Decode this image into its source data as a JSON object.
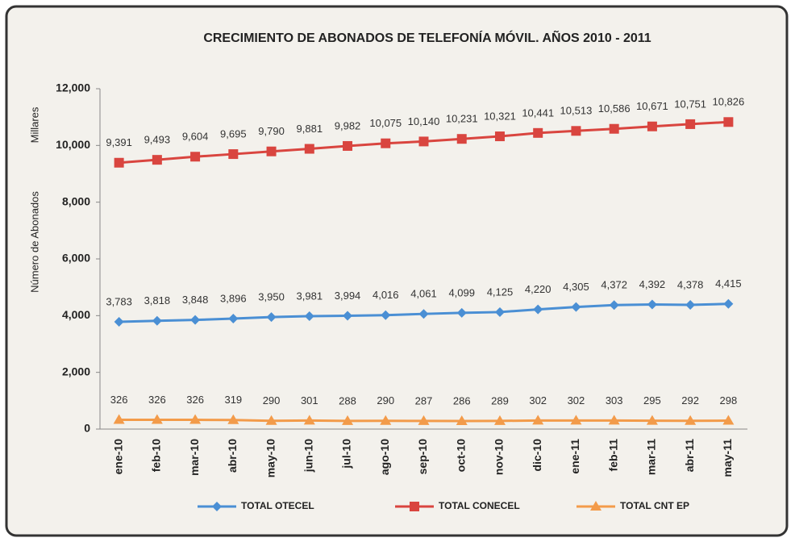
{
  "chart_data": {
    "type": "line",
    "title": "CRECIMIENTO DE ABONADOS DE TELEFONÍA MÓVIL.  AÑOS 2010 - 2011",
    "y_label": "Número de Abonados",
    "y_unit": "Millares",
    "categories": [
      "ene-10",
      "feb-10",
      "mar-10",
      "abr-10",
      "may-10",
      "jun-10",
      "jul-10",
      "ago-10",
      "sep-10",
      "oct-10",
      "nov-10",
      "dic-10",
      "ene-11",
      "feb-11",
      "mar-11",
      "abr-11",
      "may-11"
    ],
    "series": [
      {
        "name": "TOTAL OTECEL",
        "color": "#4a8fd4",
        "marker": "diamond",
        "values": [
          3783,
          3818,
          3848,
          3896,
          3950,
          3981,
          3994,
          4016,
          4061,
          4099,
          4125,
          4220,
          4305,
          4372,
          4392,
          4378,
          4415
        ],
        "value_labels": [
          "3,783",
          "3,818",
          "3,848",
          "3,896",
          "3,950",
          "3,981",
          "3,994",
          "4,016",
          "4,061",
          "4,099",
          "4,125",
          "4,220",
          "4,305",
          "4,372",
          "4,392",
          "4,378",
          "4,415"
        ]
      },
      {
        "name": "TOTAL CONECEL",
        "color": "#d9453f",
        "marker": "square",
        "values": [
          9391,
          9493,
          9604,
          9695,
          9790,
          9881,
          9982,
          10075,
          10140,
          10231,
          10321,
          10441,
          10513,
          10586,
          10671,
          10751,
          10826
        ],
        "value_labels": [
          "9,391",
          "9,493",
          "9,604",
          "9,695",
          "9,790",
          "9,881",
          "9,982",
          "10,075",
          "10,140",
          "10,231",
          "10,321",
          "10,441",
          "10,513",
          "10,586",
          "10,671",
          "10,751",
          "10,826"
        ]
      },
      {
        "name": "TOTAL CNT EP",
        "color": "#f39b4a",
        "marker": "triangle",
        "values": [
          326,
          326,
          326,
          319,
          290,
          301,
          288,
          290,
          287,
          286,
          289,
          302,
          302,
          303,
          295,
          292,
          298
        ]
      }
    ],
    "ylim": [
      0,
      12000
    ],
    "yticks": [
      0,
      {
        "value": 2000,
        "label": "2,000"
      },
      {
        "value": 4000,
        "label": "4,000"
      },
      {
        "value": 6000,
        "label": "6,000"
      },
      {
        "value": 8000,
        "label": "8,000"
      },
      {
        "value": 10000,
        "label": "10,000"
      },
      {
        "value": 12000,
        "label": "12,000"
      }
    ],
    "grid": false,
    "legend": "bottom"
  }
}
